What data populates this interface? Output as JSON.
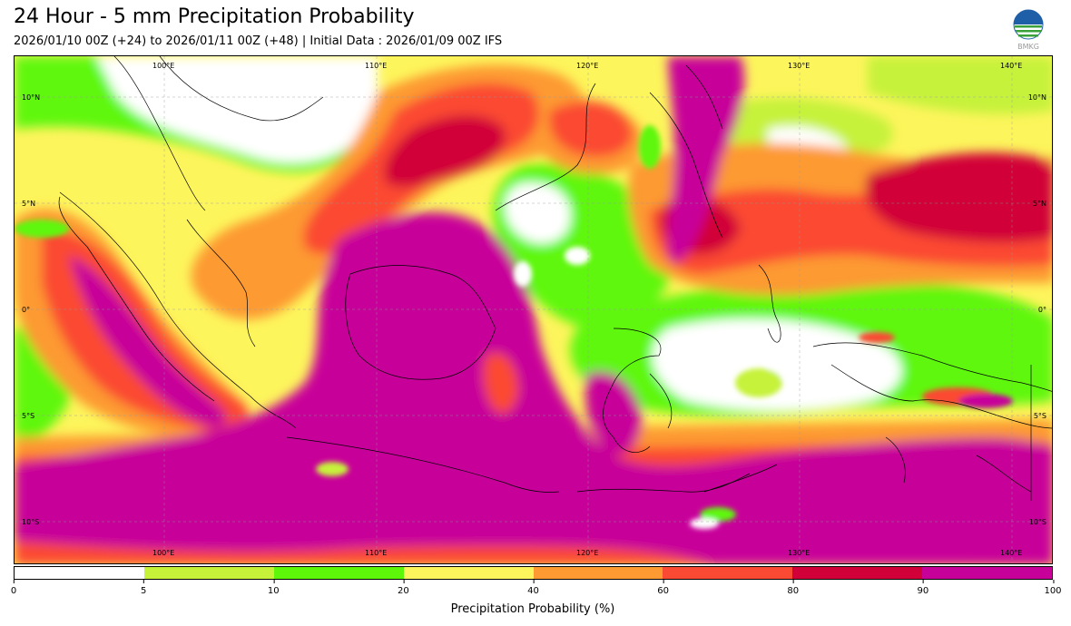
{
  "header": {
    "title": "24 Hour - 5 mm Precipitation Probability",
    "subtitle": "2026/01/10 00Z (+24) to 2026/01/11 00Z (+48) | Initial Data : 2026/01/09 00Z IFS",
    "logo_text": "BMKG"
  },
  "map": {
    "lon_labels_top": [
      "100°E",
      "110°E",
      "120°E",
      "130°E",
      "140°E"
    ],
    "lon_labels_bottom": [
      "100°E",
      "110°E",
      "120°E",
      "130°E",
      "140°E"
    ],
    "lat_labels_left": [
      "10°N",
      "5°N",
      "0°",
      "5°S",
      "10°S"
    ],
    "lat_labels_right": [
      "10°N",
      "5°N",
      "0°",
      "5°S",
      "10°S"
    ]
  },
  "colorbar": {
    "label": "Precipitation Probability (%)",
    "ticks": [
      "0",
      "5",
      "10",
      "20",
      "40",
      "60",
      "80",
      "90",
      "100"
    ],
    "colors": [
      "#ffffff",
      "#c6f23a",
      "#5ef70a",
      "#fdf55c",
      "#fd9a32",
      "#fb4a33",
      "#d10039",
      "#c8009a"
    ]
  }
}
